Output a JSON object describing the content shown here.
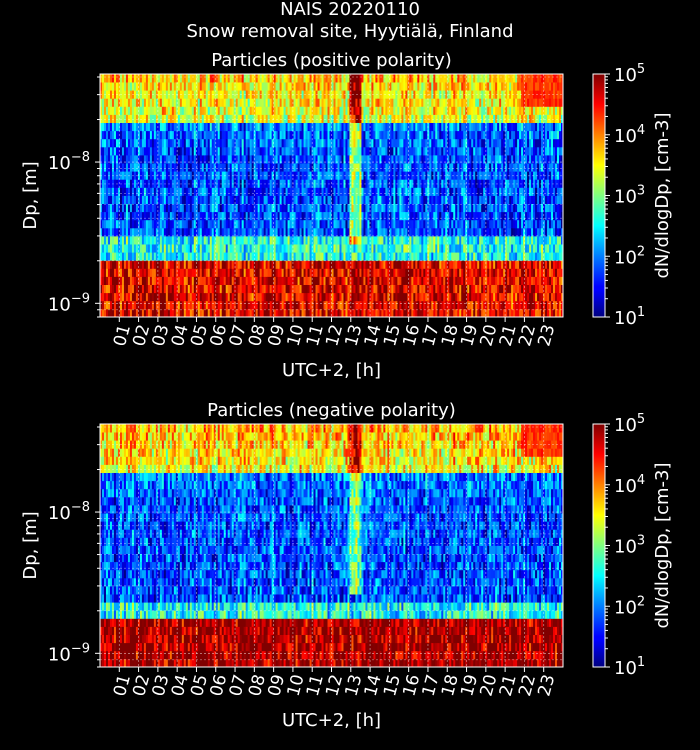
{
  "figure": {
    "title_line1": "NAIS 20220110",
    "title_line2": "Snow removal site, Hyytiälä, Finland"
  },
  "colors": {
    "background": "#000000",
    "text": "#ffffff",
    "colormap": "jet"
  },
  "chart_data": [
    {
      "type": "heatmap",
      "title": "Particles (positive polarity)",
      "xlabel": "UTC+2, [h]",
      "ylabel": "Dp, [m]",
      "colorbar_label": "dN/dlogDp, [cm-3]",
      "x_ticks": [
        "01",
        "02",
        "03",
        "04",
        "05",
        "06",
        "07",
        "08",
        "09",
        "10",
        "11",
        "12",
        "13",
        "14",
        "15",
        "16",
        "17",
        "18",
        "19",
        "20",
        "21",
        "22",
        "23"
      ],
      "xlim": [
        0,
        24
      ],
      "y_scale": "log",
      "ylim": [
        8e-10,
        4.2e-08
      ],
      "y_ticks": [
        {
          "mantissa": "10",
          "exponent": "−9",
          "value": 1e-09
        },
        {
          "mantissa": "10",
          "exponent": "−8",
          "value": 1e-08
        }
      ],
      "color_scale": "log",
      "clim": [
        10,
        100000
      ],
      "colorbar_ticks": [
        {
          "mantissa": "10",
          "exponent": "1",
          "value": 10
        },
        {
          "mantissa": "10",
          "exponent": "2",
          "value": 100
        },
        {
          "mantissa": "10",
          "exponent": "3",
          "value": 1000
        },
        {
          "mantissa": "10",
          "exponent": "4",
          "value": 10000
        },
        {
          "mantissa": "10",
          "exponent": "5",
          "value": 100000
        }
      ],
      "grid": true,
      "approx_bands": [
        {
          "dp_range": [
            8e-10,
            2e-09
          ],
          "log10_conc": 4.6
        },
        {
          "dp_range": [
            2e-09,
            3e-09
          ],
          "log10_conc": 2.6
        },
        {
          "dp_range": [
            3e-09,
            2e-08
          ],
          "log10_conc": 1.8
        },
        {
          "dp_range": [
            2e-08,
            4.2e-08
          ],
          "log10_conc": 3.1
        }
      ],
      "approx_events": [
        {
          "hour_range": [
            12.9,
            13.6
          ],
          "log10_conc_increase": 1.2
        },
        {
          "hour_range": [
            21.8,
            24
          ],
          "dp_min": 2.5e-08,
          "log10_conc": 4.3
        }
      ]
    },
    {
      "type": "heatmap",
      "title": "Particles (negative polarity)",
      "xlabel": "UTC+2, [h]",
      "ylabel": "Dp, [m]",
      "colorbar_label": "dN/dlogDp, [cm-3]",
      "x_ticks": [
        "01",
        "02",
        "03",
        "04",
        "05",
        "06",
        "07",
        "08",
        "09",
        "10",
        "11",
        "12",
        "13",
        "14",
        "15",
        "16",
        "17",
        "18",
        "19",
        "20",
        "21",
        "22",
        "23"
      ],
      "xlim": [
        0,
        24
      ],
      "y_scale": "log",
      "ylim": [
        8e-10,
        4.2e-08
      ],
      "y_ticks": [
        {
          "mantissa": "10",
          "exponent": "−9",
          "value": 1e-09
        },
        {
          "mantissa": "10",
          "exponent": "−8",
          "value": 1e-08
        }
      ],
      "color_scale": "log",
      "clim": [
        10,
        100000
      ],
      "colorbar_ticks": [
        {
          "mantissa": "10",
          "exponent": "1",
          "value": 10
        },
        {
          "mantissa": "10",
          "exponent": "2",
          "value": 100
        },
        {
          "mantissa": "10",
          "exponent": "3",
          "value": 1000
        },
        {
          "mantissa": "10",
          "exponent": "4",
          "value": 10000
        },
        {
          "mantissa": "10",
          "exponent": "5",
          "value": 100000
        }
      ],
      "grid": true,
      "approx_bands": [
        {
          "dp_range": [
            8e-10,
            1.8e-09
          ],
          "log10_conc": 4.9
        },
        {
          "dp_range": [
            1.8e-09,
            2.2e-09
          ],
          "log10_conc": 2.6
        },
        {
          "dp_range": [
            2.2e-09,
            2e-08
          ],
          "log10_conc": 1.8
        },
        {
          "dp_range": [
            2e-08,
            4.2e-08
          ],
          "log10_conc": 3.2
        }
      ],
      "approx_events": [
        {
          "hour_range": [
            12.9,
            13.6
          ],
          "log10_conc_increase": 1.2
        },
        {
          "hour_range": [
            21.8,
            24
          ],
          "dp_min": 2.5e-08,
          "log10_conc": 4.3
        }
      ]
    }
  ]
}
